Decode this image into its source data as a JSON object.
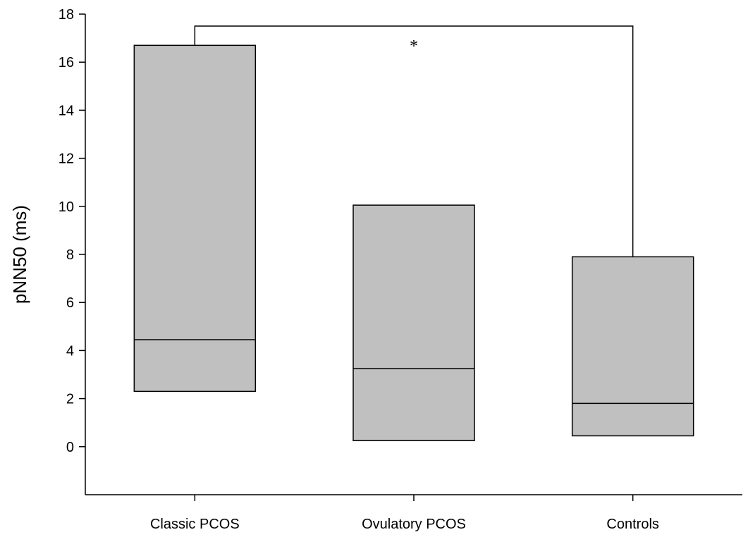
{
  "chart_data": {
    "type": "box",
    "title": "",
    "xlabel": "",
    "ylabel": "pNN50 (ms)",
    "ylim": [
      -2,
      18
    ],
    "yticks": [
      0,
      2,
      4,
      6,
      8,
      10,
      12,
      14,
      16,
      18
    ],
    "categories": [
      "Classic PCOS",
      "Ovulatory PCOS",
      "Controls"
    ],
    "boxes": [
      {
        "q1": 2.3,
        "median": 4.45,
        "q3": 16.7
      },
      {
        "q1": 0.25,
        "median": 3.25,
        "q3": 10.05
      },
      {
        "q1": 0.45,
        "median": 1.8,
        "q3": 7.9
      }
    ],
    "box_fill": "#c0c0c0",
    "grid": false,
    "annotations": [
      {
        "type": "significance-bracket",
        "from": 0,
        "to": 2,
        "y": 17.5,
        "label": "*"
      }
    ]
  }
}
